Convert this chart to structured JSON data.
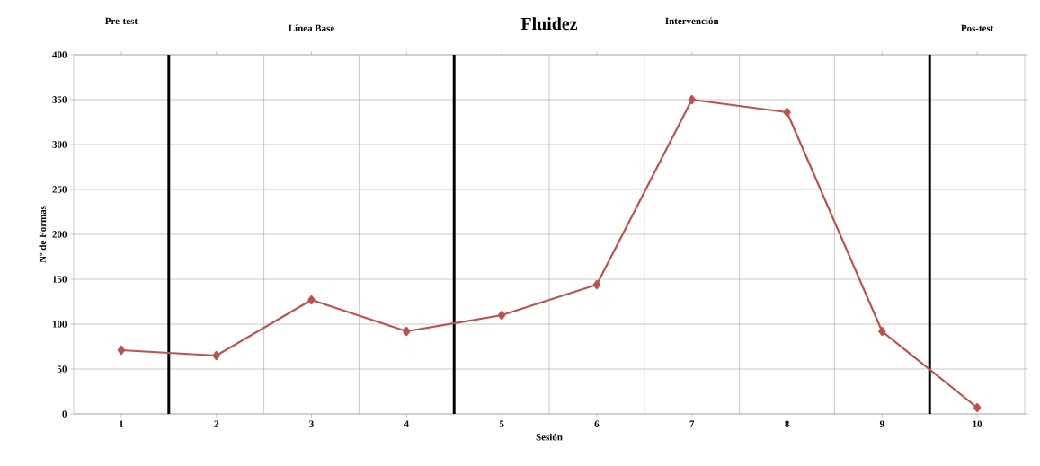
{
  "chart_data": {
    "type": "line",
    "title": "Fluidez",
    "xlabel": "Sesión",
    "ylabel": "Nº de Formas",
    "x": [
      1,
      2,
      3,
      4,
      5,
      6,
      7,
      8,
      9,
      10
    ],
    "series": [
      {
        "color": "#c0504d",
        "values": [
          71,
          65,
          127,
          92,
          110,
          144,
          350,
          336,
          92,
          7
        ]
      }
    ],
    "xlim": [
      0.5,
      10.5
    ],
    "xticks": [
      1,
      2,
      3,
      4,
      5,
      6,
      7,
      8,
      9,
      10
    ],
    "ylim": [
      0,
      400
    ],
    "yticks": [
      0,
      50,
      100,
      150,
      200,
      250,
      300,
      350,
      400
    ],
    "grid": true,
    "marker": "diamond",
    "line_style": "solid",
    "ref_lines": [
      {
        "axis": "x",
        "value": 1.5,
        "color": "#000000"
      },
      {
        "axis": "x",
        "value": 4.5,
        "color": "#000000"
      },
      {
        "axis": "x",
        "value": 9.5,
        "color": "#000000"
      }
    ],
    "annotations": [
      "Pre-test",
      "Línea Base",
      "Intervención",
      "Pos-test"
    ]
  }
}
